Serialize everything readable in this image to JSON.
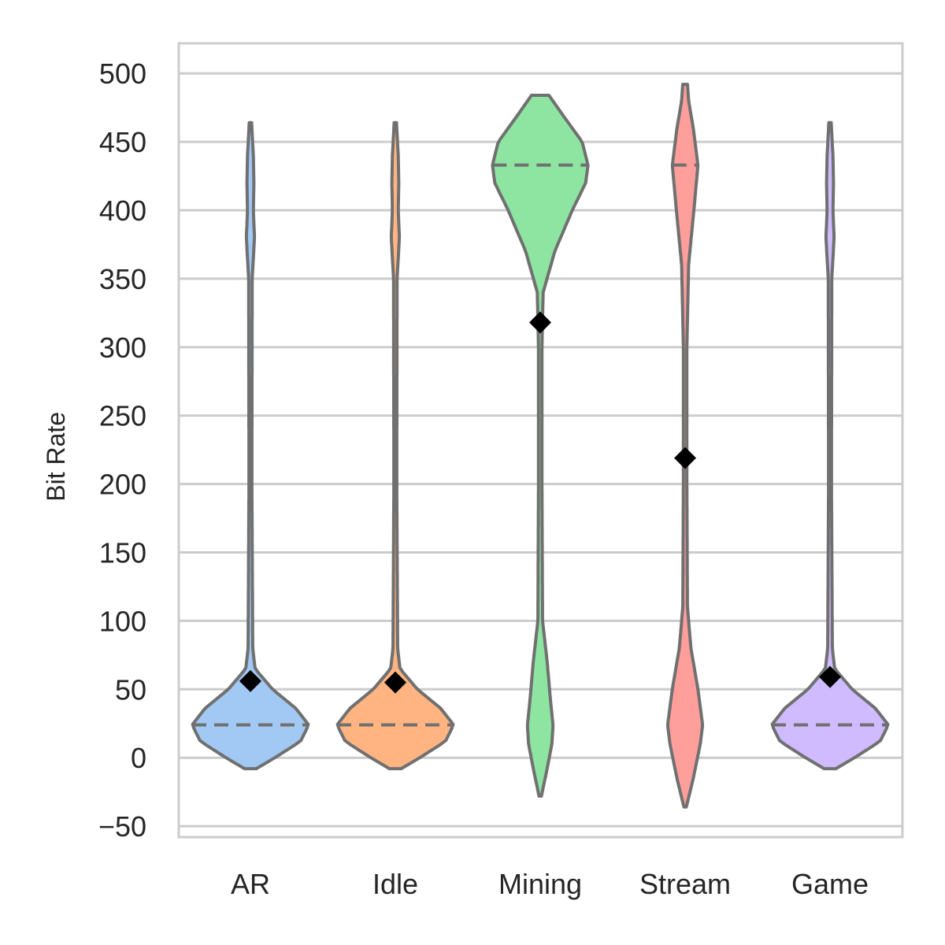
{
  "chart_data": {
    "type": "violin",
    "title": "",
    "xlabel": "",
    "ylabel": "Bit Rate",
    "ylim": [
      -58,
      522
    ],
    "yticks": [
      -50,
      0,
      50,
      100,
      150,
      200,
      250,
      300,
      350,
      400,
      450,
      500
    ],
    "ytick_labels": [
      "−50",
      "0",
      "50",
      "100",
      "150",
      "200",
      "250",
      "300",
      "350",
      "400",
      "450",
      "500"
    ],
    "grid": true,
    "legend": "none",
    "categories": [
      "AR",
      "Idle",
      "Mining",
      "Stream",
      "Game"
    ],
    "colors": [
      "#a1c9f4",
      "#ffb482",
      "#8de5a1",
      "#ff9f9b",
      "#d0bbff"
    ],
    "median_line_style": "dashed",
    "mean_marker": "black diamond",
    "series": [
      {
        "category": "AR",
        "median": 24,
        "mean": 56,
        "range": [
          -8,
          464
        ],
        "density": [
          [
            -8,
            0.1
          ],
          [
            0,
            0.42
          ],
          [
            12,
            0.86
          ],
          [
            24,
            1.0
          ],
          [
            36,
            0.78
          ],
          [
            50,
            0.38
          ],
          [
            65,
            0.08
          ],
          [
            80,
            0.04
          ],
          [
            200,
            0.025
          ],
          [
            350,
            0.03
          ],
          [
            380,
            0.07
          ],
          [
            400,
            0.05
          ],
          [
            420,
            0.06
          ],
          [
            440,
            0.05
          ],
          [
            464,
            0.02
          ]
        ]
      },
      {
        "category": "Idle",
        "median": 24,
        "mean": 55,
        "range": [
          -8,
          464
        ],
        "density": [
          [
            -8,
            0.1
          ],
          [
            0,
            0.42
          ],
          [
            12,
            0.86
          ],
          [
            24,
            1.0
          ],
          [
            36,
            0.78
          ],
          [
            50,
            0.38
          ],
          [
            65,
            0.08
          ],
          [
            80,
            0.04
          ],
          [
            200,
            0.025
          ],
          [
            350,
            0.03
          ],
          [
            380,
            0.07
          ],
          [
            400,
            0.05
          ],
          [
            420,
            0.06
          ],
          [
            440,
            0.05
          ],
          [
            464,
            0.02
          ]
        ]
      },
      {
        "category": "Mining",
        "median": 433,
        "mean": 318,
        "range": [
          -28,
          484
        ],
        "density": [
          [
            -28,
            0.02
          ],
          [
            -10,
            0.11
          ],
          [
            10,
            0.2
          ],
          [
            24,
            0.22
          ],
          [
            40,
            0.18
          ],
          [
            70,
            0.12
          ],
          [
            100,
            0.04
          ],
          [
            200,
            0.03
          ],
          [
            300,
            0.03
          ],
          [
            340,
            0.05
          ],
          [
            370,
            0.25
          ],
          [
            400,
            0.55
          ],
          [
            420,
            0.78
          ],
          [
            433,
            0.82
          ],
          [
            450,
            0.72
          ],
          [
            470,
            0.38
          ],
          [
            484,
            0.15
          ]
        ]
      },
      {
        "category": "Stream",
        "median": 433,
        "mean": 219,
        "range": [
          -36,
          492
        ],
        "density": [
          [
            -36,
            0.02
          ],
          [
            -15,
            0.14
          ],
          [
            10,
            0.26
          ],
          [
            24,
            0.3
          ],
          [
            50,
            0.22
          ],
          [
            80,
            0.1
          ],
          [
            110,
            0.04
          ],
          [
            200,
            0.03
          ],
          [
            300,
            0.03
          ],
          [
            360,
            0.06
          ],
          [
            400,
            0.15
          ],
          [
            433,
            0.22
          ],
          [
            460,
            0.14
          ],
          [
            480,
            0.06
          ],
          [
            492,
            0.04
          ]
        ]
      },
      {
        "category": "Game",
        "median": 24,
        "mean": 59,
        "range": [
          -8,
          464
        ],
        "density": [
          [
            -8,
            0.1
          ],
          [
            0,
            0.42
          ],
          [
            12,
            0.86
          ],
          [
            24,
            1.0
          ],
          [
            36,
            0.78
          ],
          [
            50,
            0.38
          ],
          [
            65,
            0.08
          ],
          [
            80,
            0.04
          ],
          [
            200,
            0.025
          ],
          [
            350,
            0.03
          ],
          [
            380,
            0.07
          ],
          [
            400,
            0.05
          ],
          [
            420,
            0.06
          ],
          [
            440,
            0.05
          ],
          [
            464,
            0.02
          ]
        ]
      }
    ]
  }
}
